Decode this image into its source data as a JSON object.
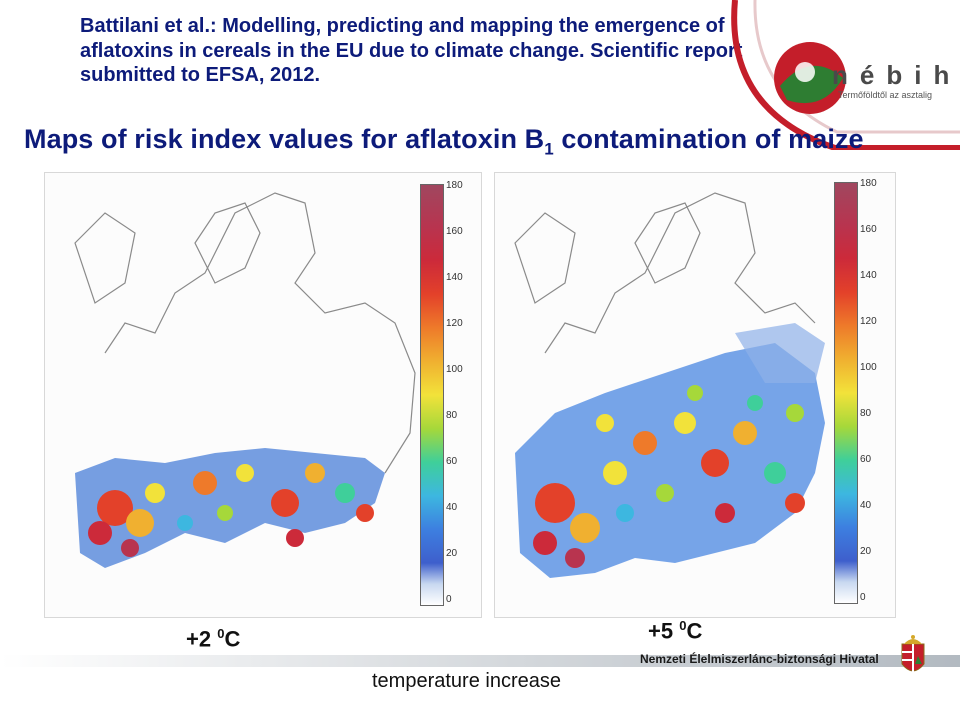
{
  "citation": {
    "line1": "Battilani et al.: Modelling, predicting and mapping the emergence of",
    "line2": "aflatoxins in cereals in the EU due to climate change. Scientific report",
    "line3": "submitted to EFSA, 2012."
  },
  "title": {
    "prefix": "Maps of risk index values for aflatoxin B",
    "subscript": "1",
    "suffix": " contamination of maize"
  },
  "logo": {
    "name": "nébih",
    "tagline": "Termőföldtől az asztalig"
  },
  "maps": {
    "left": {
      "label_value": "+2 ",
      "label_sup": "0",
      "label_unit": "C",
      "colorbar_ticks": [
        "180",
        "160",
        "140",
        "120",
        "100",
        "80",
        "60",
        "40",
        "20",
        "0"
      ]
    },
    "right": {
      "label_value": "+5 ",
      "label_sup": "0",
      "label_unit": "C",
      "colorbar_ticks": [
        "180",
        "160",
        "140",
        "120",
        "100",
        "80",
        "60",
        "40",
        "20",
        "0"
      ]
    }
  },
  "axis_caption": "temperature increase",
  "footer": {
    "org_name": "Nemzeti Élelmiszerlánc-biztonsági Hivatal"
  },
  "colors": {
    "title_blue": "#0d1b7a",
    "logo_red": "#c41e2a",
    "logo_green": "#2e7d32"
  }
}
